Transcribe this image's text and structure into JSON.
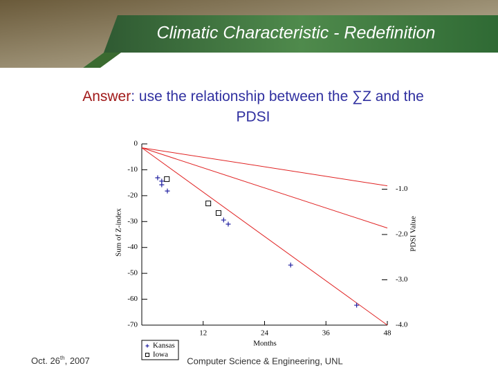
{
  "slide": {
    "title": "Climatic Characteristic - Redefinition",
    "subtitle": {
      "lead": "Answer",
      "line1": ": use the relationship between the ∑Z and the",
      "line2": "PDSI"
    },
    "footer": {
      "date": [
        "Oct. 26",
        "th",
        ", 2007"
      ],
      "center": "Computer Science & Engineering, UNL"
    }
  },
  "chart_data": {
    "type": "scatter",
    "xlabel": "Months",
    "ylabel": "Sum of Z-index",
    "y2label": "PDSI Value",
    "xlim": [
      0,
      48
    ],
    "xticks": [
      12,
      24,
      36,
      48
    ],
    "ylim": [
      -70,
      0
    ],
    "yticks": [
      0,
      -10,
      -20,
      -30,
      -40,
      -50,
      -60,
      -70
    ],
    "y2lim": [
      -4.0,
      0
    ],
    "y2ticks": [
      {
        "value": -1,
        "label": "-1.0"
      },
      {
        "value": -2,
        "label": "-2.0"
      },
      {
        "value": -3,
        "label": "-3.0"
      },
      {
        "value": -4,
        "label": "-4.0"
      }
    ],
    "lines": [
      {
        "color": "#e02020",
        "x": [
          0,
          48
        ],
        "values": [
          -1.5,
          -16.2
        ]
      },
      {
        "color": "#e02020",
        "x": [
          0,
          48
        ],
        "values": [
          -1.5,
          -32.5
        ]
      },
      {
        "color": "#e02020",
        "x": [
          0,
          48
        ],
        "values": [
          -1.5,
          -70
        ]
      }
    ],
    "series": [
      {
        "name": "Kansas",
        "marker": "plus",
        "color": "#2020a0",
        "x": [
          3.1,
          3.9,
          3.9,
          5.0,
          16.0,
          16.9,
          29.1,
          42.0
        ],
        "values": [
          -13.1,
          -14.4,
          -15.8,
          -18.2,
          -29.4,
          -31.0,
          -46.8,
          -62.3
        ]
      },
      {
        "name": "Iowa",
        "marker": "square",
        "color": "#000000",
        "x": [
          4.9,
          13.0,
          15.0
        ],
        "values": [
          -13.6,
          -23.0,
          -26.7
        ]
      }
    ],
    "legend": "bottom-left"
  }
}
